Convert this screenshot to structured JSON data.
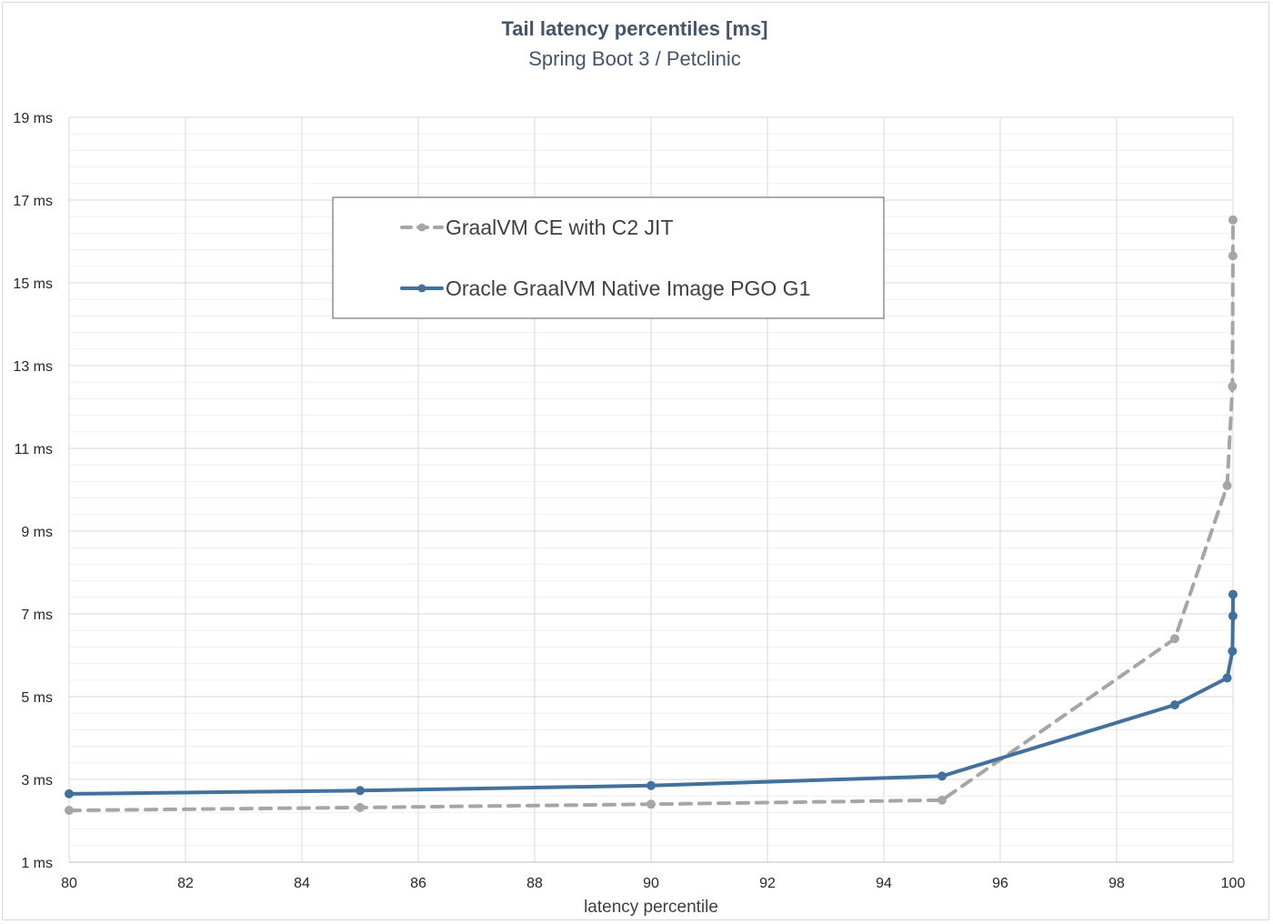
{
  "chart_data": {
    "type": "line",
    "title": "Tail latency percentiles [ms]",
    "subtitle": "Spring Boot 3 / Petclinic",
    "xlabel": "latency percentile",
    "ylabel": "",
    "xlim": [
      80,
      100
    ],
    "ylim": [
      1,
      19
    ],
    "x_ticks": [
      "80",
      "82",
      "84",
      "86",
      "88",
      "90",
      "92",
      "94",
      "96",
      "98",
      "100"
    ],
    "x_tick_values": [
      80,
      82,
      84,
      86,
      88,
      90,
      92,
      94,
      96,
      98,
      100
    ],
    "y_ticks": [
      "1 ms",
      "3 ms",
      "5 ms",
      "7 ms",
      "9 ms",
      "11 ms",
      "13 ms",
      "15 ms",
      "17 ms",
      "19 ms"
    ],
    "y_tick_values": [
      1,
      3,
      5,
      7,
      9,
      11,
      13,
      15,
      17,
      19
    ],
    "grid": true,
    "legend_position": "top-center",
    "series": [
      {
        "name": "GraalVM CE with C2 JIT",
        "color": "#a6a6a6",
        "line_style": "dashed",
        "points": [
          {
            "x": 80,
            "y": 2.25
          },
          {
            "x": 85,
            "y": 2.32
          },
          {
            "x": 90,
            "y": 2.4
          },
          {
            "x": 95,
            "y": 2.5
          },
          {
            "x": 99,
            "y": 6.4
          },
          {
            "x": 99.9,
            "y": 10.1
          },
          {
            "x": 99.99,
            "y": 12.5
          },
          {
            "x": 99.999,
            "y": 15.65
          },
          {
            "x": 100,
            "y": 16.52
          }
        ]
      },
      {
        "name": "Oracle GraalVM Native Image PGO G1",
        "color": "#41719c",
        "line_style": "solid",
        "points": [
          {
            "x": 80,
            "y": 2.65
          },
          {
            "x": 85,
            "y": 2.73
          },
          {
            "x": 90,
            "y": 2.85
          },
          {
            "x": 95,
            "y": 3.08
          },
          {
            "x": 99,
            "y": 4.8
          },
          {
            "x": 99.9,
            "y": 5.45
          },
          {
            "x": 99.99,
            "y": 6.1
          },
          {
            "x": 99.999,
            "y": 6.95
          },
          {
            "x": 100,
            "y": 7.47
          }
        ]
      }
    ]
  }
}
